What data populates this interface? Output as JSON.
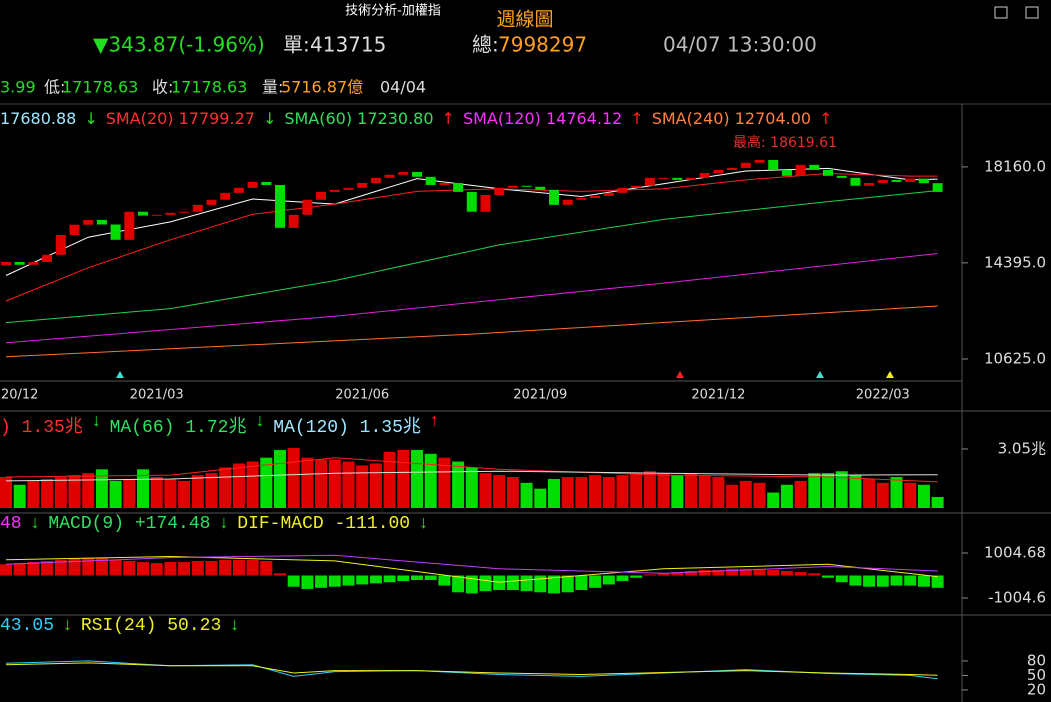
{
  "header": {
    "title": "技術分析-加權指",
    "period": "週線圖",
    "change": "▼343.87(-1.96%)",
    "unit_label": "單:",
    "unit_value": "413715",
    "total_label": "總:",
    "total_value": "7998297",
    "time": "04/07 13:30:00"
  },
  "ohlc_row": {
    "high_value": "3.99",
    "low_label": "低:",
    "low_value": "17178.63",
    "close_label": "收:",
    "close_value": "17178.63",
    "volume_label": "量:",
    "volume_value": "5716.87億",
    "date": "04/04"
  },
  "price_panel": {
    "legend": [
      {
        "name": "17680.88",
        "arrow": "↓",
        "color": "#9fe6ff"
      },
      {
        "name": "SMA(20) 17799.27",
        "arrow": "↓",
        "color": "#ff3030"
      },
      {
        "name": "SMA(60) 17230.80",
        "arrow": "↑",
        "color": "#30e060"
      },
      {
        "name": "SMA(120) 14764.12",
        "arrow": "↑",
        "color": "#ff30ff"
      },
      {
        "name": "SMA(240) 12704.00",
        "arrow": "↑",
        "color": "#ff8040"
      }
    ],
    "annotation": "最高: 18619.61",
    "ylim": [
      9800,
      20470
    ],
    "yticks": [
      {
        "value": 18160,
        "label": "18160.0"
      },
      {
        "value": 14395,
        "label": "14395.0"
      },
      {
        "value": 10625,
        "label": "10625.0"
      }
    ],
    "xlabels": [
      {
        "candle": 1,
        "label": "20/12"
      },
      {
        "candle": 11,
        "label": "2021/03"
      },
      {
        "candle": 26,
        "label": "2021/06"
      },
      {
        "candle": 39,
        "label": "2021/09"
      },
      {
        "candle": 52,
        "label": "2021/12"
      },
      {
        "candle": 64,
        "label": "2022/03"
      }
    ],
    "open": [
      14300,
      14430,
      14320,
      14430,
      14710,
      15490,
      15890,
      16080,
      15900,
      15300,
      16400,
      16250,
      16280,
      16360,
      16400,
      16670,
      16870,
      17140,
      17340,
      17570,
      17450,
      15770,
      16280,
      16870,
      17180,
      17260,
      17340,
      17530,
      17730,
      17850,
      17960,
      17770,
      17450,
      17530,
      17180,
      16400,
      17060,
      17340,
      17420,
      17380,
      17260,
      16670,
      16870,
      16940,
      17020,
      17140,
      17340,
      17420,
      17730,
      17730,
      17650,
      17730,
      17920,
      18040,
      18120,
      18320,
      18430,
      18040,
      17810,
      18240,
      18040,
      17810,
      17730,
      17420,
      17530,
      17650,
      17570,
      17700,
      17520
    ],
    "close": [
      14430,
      14320,
      14430,
      14710,
      15490,
      15890,
      16080,
      15900,
      15300,
      16400,
      16250,
      16280,
      16360,
      16400,
      16670,
      16870,
      17140,
      17340,
      17570,
      17450,
      15770,
      16280,
      16870,
      17180,
      17260,
      17340,
      17530,
      17730,
      17850,
      17960,
      17770,
      17450,
      17530,
      17180,
      16400,
      17060,
      17340,
      17420,
      17380,
      17260,
      16670,
      16870,
      16940,
      17020,
      17140,
      17340,
      17420,
      17730,
      17730,
      17650,
      17730,
      17920,
      18040,
      18120,
      18320,
      18430,
      18040,
      17810,
      18240,
      18040,
      17810,
      17730,
      17420,
      17530,
      17650,
      17570,
      17700,
      17520,
      17178.63
    ],
    "sma": [
      {
        "color": "#ffffff",
        "x": [
          0,
          6,
          12,
          18,
          24,
          30,
          36,
          42,
          48,
          54,
          60,
          66,
          68
        ],
        "values": [
          13900,
          15400,
          16000,
          16900,
          16700,
          17700,
          17300,
          17000,
          17500,
          18000,
          18100,
          17650,
          17680.88
        ]
      },
      {
        "color": "#ff2020",
        "x": [
          0,
          6,
          12,
          18,
          24,
          30,
          36,
          42,
          48,
          54,
          60,
          66,
          68
        ],
        "values": [
          12900,
          14200,
          15300,
          16300,
          16700,
          17200,
          17300,
          17200,
          17300,
          17650,
          17900,
          17800,
          17799.27
        ]
      },
      {
        "color": "#20d050",
        "x": [
          0,
          12,
          24,
          36,
          48,
          60,
          68
        ],
        "values": [
          12050,
          12600,
          13700,
          15100,
          16100,
          16800,
          17230.8
        ]
      },
      {
        "color": "#e020e0",
        "x": [
          0,
          24,
          48,
          68
        ],
        "values": [
          11260,
          12300,
          13600,
          14764.12
        ]
      },
      {
        "color": "#ff7030",
        "x": [
          0,
          34,
          68
        ],
        "values": [
          10710,
          11600,
          12704
        ]
      }
    ]
  },
  "volume_panel": {
    "legend": [
      {
        "name": ") 1.35兆",
        "arrow": "↓",
        "color": "#ff3030"
      },
      {
        "name": "MA(66) 1.72兆",
        "arrow": "↓",
        "color": "#30e060"
      },
      {
        "name": "MA(120) 1.35兆",
        "arrow": "↑",
        "color": "#9fe6ff"
      }
    ],
    "ylim": [
      0,
      4.96
    ],
    "yticks": [
      {
        "value": 3.05,
        "label": "3.05兆"
      }
    ],
    "values": [
      1.6,
      1.2,
      1.4,
      1.5,
      1.6,
      1.7,
      1.8,
      2.0,
      1.4,
      1.5,
      2.0,
      1.6,
      1.5,
      1.4,
      1.7,
      1.8,
      2.1,
      2.3,
      2.4,
      2.6,
      3.0,
      3.1,
      2.6,
      2.5,
      2.5,
      2.4,
      2.2,
      2.3,
      2.9,
      3.0,
      3.0,
      2.8,
      2.6,
      2.4,
      2.1,
      1.8,
      1.7,
      1.6,
      1.3,
      1.0,
      1.5,
      1.6,
      1.6,
      1.7,
      1.6,
      1.7,
      1.8,
      1.9,
      1.8,
      1.7,
      1.8,
      1.7,
      1.6,
      1.2,
      1.4,
      1.3,
      0.8,
      1.2,
      1.4,
      1.8,
      1.8,
      1.9,
      1.7,
      1.5,
      1.3,
      1.6,
      1.3,
      1.2,
      0.57
    ],
    "ma": [
      {
        "color": "#ff2020",
        "x": [
          0,
          12,
          24,
          36,
          48,
          60,
          68
        ],
        "values": [
          1.6,
          1.7,
          2.6,
          2.0,
          1.7,
          1.6,
          1.35
        ]
      },
      {
        "color": "#e0e0e0",
        "x": [
          0,
          12,
          24,
          36,
          48,
          60,
          68
        ],
        "values": [
          1.4,
          1.5,
          1.8,
          1.9,
          1.8,
          1.7,
          1.72
        ]
      }
    ]
  },
  "macd_panel": {
    "legend": [
      {
        "name": "48",
        "arrow": "↓",
        "color": "#ff30ff"
      },
      {
        "name": "MACD(9) +174.48",
        "arrow": "↓",
        "color": "#30e060"
      },
      {
        "name": "DIF-MACD -111.00",
        "arrow": "↓",
        "color": "#f0f020"
      }
    ],
    "ylim": [
      -1630,
      2746
    ],
    "yticks": [
      {
        "value": 1004.68,
        "label": "1004.68"
      },
      -1004.6
    ],
    "values": [
      500,
      550,
      600,
      650,
      700,
      750,
      800,
      800,
      700,
      650,
      600,
      550,
      600,
      600,
      650,
      650,
      700,
      700,
      700,
      650,
      100,
      -500,
      -600,
      -550,
      -500,
      -450,
      -400,
      -350,
      -300,
      -250,
      -200,
      -200,
      -450,
      -750,
      -800,
      -700,
      -650,
      -650,
      -700,
      -750,
      -800,
      -750,
      -650,
      -550,
      -400,
      -250,
      -100,
      50,
      100,
      150,
      200,
      250,
      250,
      300,
      300,
      300,
      250,
      200,
      150,
      100,
      -100,
      -300,
      -450,
      -500,
      -500,
      -450,
      -450,
      -500,
      -550
    ],
    "lines": [
      {
        "color": "#f0f020",
        "x": [
          0,
          12,
          24,
          36,
          48,
          60,
          68
        ],
        "values": [
          700,
          850,
          650,
          -300,
          300,
          500,
          -50
        ]
      },
      {
        "color": "#c040ff",
        "x": [
          0,
          12,
          24,
          36,
          48,
          60,
          68
        ],
        "values": [
          500,
          800,
          900,
          300,
          100,
          400,
          200
        ]
      }
    ]
  },
  "rsi_panel": {
    "legend": [
      {
        "name": "43.05",
        "arrow": "↓",
        "color": "#30d0ff"
      },
      {
        "name": "RSI(24) 50.23",
        "arrow": "↓",
        "color": "#f0f020"
      }
    ],
    "ylim": [
      -5,
      173
    ],
    "yticks": [
      80,
      50,
      20
    ],
    "lines": [
      {
        "color": "#30d0ff",
        "x": [
          0,
          6,
          12,
          18,
          21,
          24,
          30,
          36,
          42,
          48,
          54,
          60,
          66,
          68
        ],
        "values": [
          75,
          80,
          70,
          72,
          48,
          58,
          60,
          52,
          48,
          55,
          62,
          54,
          50,
          43.05
        ]
      },
      {
        "color": "#f0f020",
        "x": [
          0,
          6,
          12,
          18,
          21,
          24,
          30,
          36,
          42,
          48,
          54,
          60,
          66,
          68
        ],
        "values": [
          72,
          76,
          70,
          70,
          55,
          60,
          60,
          55,
          52,
          56,
          60,
          55,
          52,
          50.23
        ]
      }
    ]
  }
}
